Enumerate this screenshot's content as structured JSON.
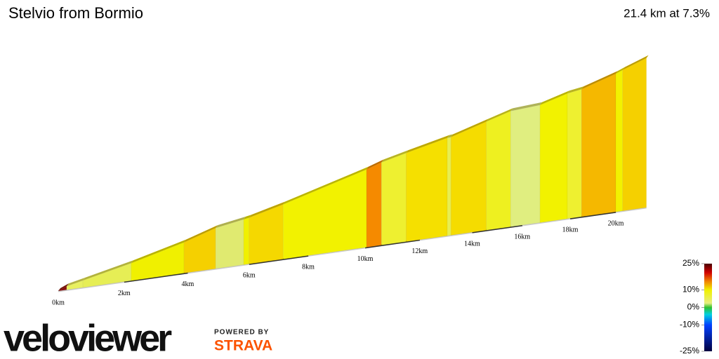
{
  "chart_data": {
    "type": "profile3d",
    "title": "Stelvio from Bormio",
    "subtitle": "21.4 km at 7.3%",
    "x": [
      0,
      0.25,
      0.74,
      2.22,
      3.88,
      4.9,
      5.82,
      6.0,
      7.14,
      10.05,
      10.59,
      11.49,
      13.04,
      13.18,
      14.56,
      15.53,
      16.73,
      17.88,
      18.49,
      20.0,
      20.31,
      21.4
    ],
    "values": [
      1225,
      1261,
      1297,
      1405,
      1541,
      1642,
      1690,
      1700,
      1786,
      2023,
      2074,
      2134,
      2229,
      2232,
      2340,
      2412,
      2431,
      2510,
      2533,
      2642,
      2671,
      2758
    ],
    "segment_colors": [
      "#8a1010",
      "#e8f060",
      "#e6ee55",
      "#f0f000",
      "#f5d000",
      "#e0ea70",
      "#f0f000",
      "#f5d800",
      "#f2f200",
      "#f58a00",
      "#eef030",
      "#f5e000",
      "#e8ee50",
      "#f5dc00",
      "#eef020",
      "#e0ee80",
      "#f2f200",
      "#eef030",
      "#f5b800",
      "#f2f200",
      "#f5d000"
    ],
    "xticks": [
      {
        "value": 0,
        "label": "0km"
      },
      {
        "value": 2,
        "label": "2km"
      },
      {
        "value": 4,
        "label": "4km"
      },
      {
        "value": 6,
        "label": "6km"
      },
      {
        "value": 8,
        "label": "8km"
      },
      {
        "value": 10,
        "label": "10km"
      },
      {
        "value": 12,
        "label": "12km"
      },
      {
        "value": 14,
        "label": "14km"
      },
      {
        "value": 16,
        "label": "16km"
      },
      {
        "value": 18,
        "label": "18km"
      },
      {
        "value": 20,
        "label": "20km"
      }
    ],
    "colorbar_lim": [
      -25,
      25
    ],
    "colorbar_ticks": [
      {
        "value": 25,
        "label": "25%"
      },
      {
        "value": 10,
        "label": "10%"
      },
      {
        "value": 0,
        "label": "0%"
      },
      {
        "value": -10,
        "label": "-10%"
      },
      {
        "value": -25,
        "label": "-25%"
      }
    ]
  },
  "branding": {
    "logo": "veloviewer",
    "powered_by": "POWERED BY",
    "partner": "STRAVA"
  }
}
